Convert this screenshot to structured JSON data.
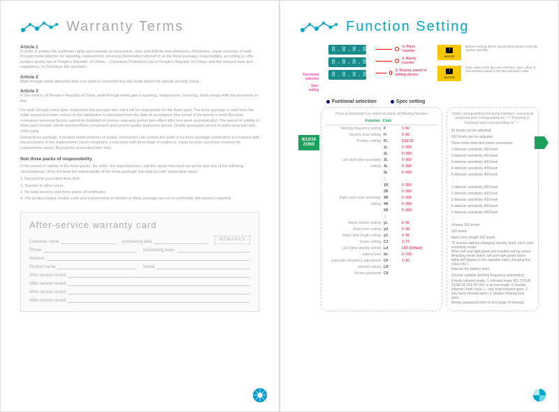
{
  "colors": {
    "accent": "#00a6c7",
    "green": "#1aa05a",
    "magenta": "#e5004f",
    "red": "#e00000",
    "yellow": "#f7c800",
    "teal_display": "#1a8a8a",
    "grey_text": "#888888"
  },
  "left": {
    "title": "Warranty Terms",
    "articles": [
      {
        "h": "Article 1",
        "t": "In order to protect the legitimate rights and interests of consumers, clear and definite manufacturers, distributors, repair business of walk through metal detector for repairing, replacement, returning (hereinafter referred to as the three package) responsibility, according to «the product quality law of People's Republic of China», «Consumer Protection Law of People's Republic of China» and the relevant laws and regulations, to Constitute this provision."
      },
      {
        "h": "Article 2",
        "t": "Walk through metal detection door is to point to consumer buy this kinds device for special security check."
      },
      {
        "h": "Article 3",
        "t": "In the territory of People's Republic of China, walk through metal gate's repairing, replacement, returning, shall comply with the provisions of this."
      }
    ],
    "policy": [
      "For walk through metal gate, implement this principle who sell it will be responsible for the three pack. The three package is valid from the seller issued purchase invoice or the installation is calculated from the date of acceptance (the arrival of the goods a week Because consumers personal factors cannot be installed on invoice, warranty period take effect after one week automatically). The period of validity of three pack include: whole machine/Main component and system quality guarantee period, Quality guarantee period of quick-wear part and other parts.",
      "During three package, if product exists problem of quality, consumers can contact the seller in by three package certification accordance with the provisions of the replacement, return conditions, consumers with three bags of evidence, repair records, purchase invoices for replacement, return. Beyond the prescribed time limit."
    ],
    "nonthree_h": "Non three packs of responsibility",
    "nonthree": "In the period of validity of the three packs, the seller, the manufacturers, and the repair merchant can prove that one of the following circumstances, does not bear the responsibility of the three package, but shall provide reasonable repair:",
    "nonthree_list": [
      "1. Beyond the prescribed time limit",
      "2. Transfer to other users",
      "3. No valid invoices and three packs of certificates",
      "4. The product brand, model, code and requirements in models or three package are not in conformity with product required."
    ],
    "card": {
      "title": "After-service warranty card",
      "fields": {
        "customer": "Customer name",
        "purchase_date": "purchasing date",
        "phone": "Phone",
        "purchase_ways": "purchasing ways",
        "address": "Address",
        "product_name": "Product name",
        "model": "Model",
        "asr": "After-service record"
      },
      "remarks": "REMARKS"
    }
  },
  "right": {
    "title": "Function Setting",
    "display_value": "8.8.8.8.8.",
    "labels": {
      "func_sel": "Functional selection",
      "spec": "Spec setting",
      "pass": "① Pass counter",
      "alarm": "② Alarm counter",
      "panel": "③ Display panel of setting device"
    },
    "notice_label": "NOTICE",
    "notice1": "Before revising device specification please read this section carefully.",
    "notice2": "Note: when enter into next interface, spec value of last interface equal to the last operation value.",
    "tabs": {
      "a": "Funtional selection",
      "b": "Spec setting"
    },
    "left_box_head": "Press ⊕ keyboard\nCan select circularly at following function",
    "right_box_head": "Under corresponding functional interface, pressing ⊕ keyboard and corresponding no. \"+\"\nPressing ⊖ keyboard and corresponding no. \"−\"",
    "badge": "6/12/18\nZONE",
    "header": {
      "func": "Function",
      "code": "Code"
    },
    "rows": [
      {
        "name": "Working frequency setting",
        "code": "F",
        "range": "1~50",
        "desc": "50 levels can be adjusted"
      },
      {
        "name": "Security level setting",
        "code": "H",
        "range": "0~99",
        "desc": "100 levels can be adjusted"
      },
      {
        "name": "Partition setting",
        "code": "FL",
        "range": "6/12/18",
        "desc": "Three kinds detection zones conversion"
      },
      {
        "name": "",
        "code": "1L",
        "range": "0~399",
        "desc": "1 detector sensitivity 400 level"
      },
      {
        "name": "",
        "code": "2L",
        "range": "0~399",
        "desc": "2 detector sensitivity 400 level"
      },
      {
        "name": "Left each zone sensitivity",
        "code": "3L",
        "range": "0~399",
        "desc": "3 detector sensitivity 400 level"
      },
      {
        "name": "setting",
        "code": "4L",
        "range": "0~399",
        "desc": "4 detector sensitivity 400 level"
      },
      {
        "name": "",
        "code": "5L",
        "range": "0~399",
        "desc": "5 detector sensitivity 400 level"
      },
      {
        "name": "",
        "code": "⋮",
        "range": "",
        "desc": "⋮"
      },
      {
        "name": "",
        "code": "1R",
        "range": "0~399",
        "desc": "1 detector sensitivity 400 level"
      },
      {
        "name": "",
        "code": "2R",
        "range": "0~399",
        "desc": "2 detector sensitivity 400 level"
      },
      {
        "name": "Right each zone sensitivity",
        "code": "3R",
        "range": "0~399",
        "desc": "3 detector sensitivity 400 level"
      },
      {
        "name": "setting",
        "code": "4R",
        "range": "0~399",
        "desc": "4 detector sensitivity 400 level"
      },
      {
        "name": "",
        "code": "5R",
        "range": "0~399",
        "desc": "5 detector sensitivity 400 level"
      },
      {
        "name": "",
        "code": "⋮",
        "range": "",
        "desc": "⋮"
      },
      {
        "name": "Alarm volume setting",
        "code": "yL",
        "range": "0~99",
        "desc": "Volume 100 levels"
      },
      {
        "name": "Alarm tone setting",
        "code": "yd",
        "range": "0~99",
        "desc": "100 levels"
      },
      {
        "name": "Alarm time length setting",
        "code": "yC",
        "range": "0~99",
        "desc": "Alarm time length 100 levels"
      },
      {
        "name": "Scene setting",
        "code": "CJ",
        "range": "1~72",
        "desc": "72 scenes options changing security level, each zone sensitivity mode"
      },
      {
        "name": "LED lights display setting",
        "code": "Ld",
        "range": "LD0 (Default)",
        "desc": "When left and right panel are installed wrong (when detecting metal object, left and right panel alarm lights will display in the opposite side) changing the value into 1"
      },
      {
        "name": "battery level",
        "code": "dc",
        "range": "0~100",
        "desc": "Indicate the battery level"
      },
      {
        "name": "automatic frequency adjustment",
        "code": "CF",
        "range": "1~50",
        "desc": "Choose suitable working frequency automaticly"
      },
      {
        "name": "Infrared setting",
        "code": "LR",
        "range": "",
        "desc": "4 kinds infrared mode: 1. infrared mode IR1 (YOUR ZONE IR ON) IR OFF is its test mode. 0. double infrared / both close. 1. only front infrared open. 2. only back infrared open. 3. double infrared both open."
      },
      {
        "name": "Revise password",
        "code": "C0",
        "range": "",
        "desc": "Revise password (refer to first page of manual)"
      }
    ]
  }
}
